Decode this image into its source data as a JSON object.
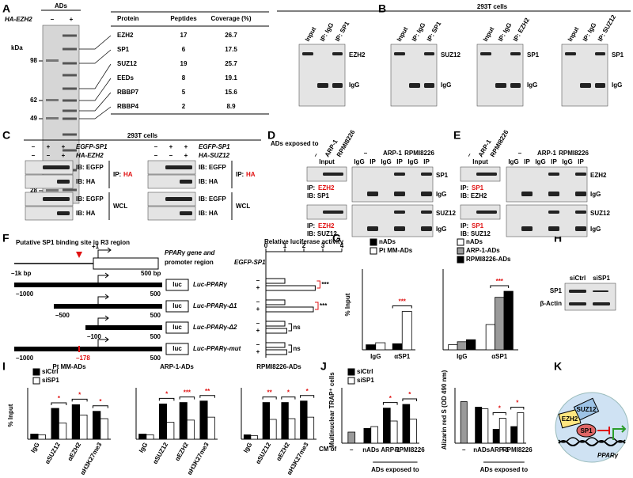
{
  "panel_labels": [
    "A",
    "B",
    "C",
    "D",
    "E",
    "F",
    "G",
    "H",
    "I",
    "J",
    "K"
  ],
  "a": {
    "header": "ADs",
    "construct": "HA-EZH2",
    "lanes": [
      "–",
      "+"
    ],
    "kda_label": "kDa",
    "markers": [
      98,
      62,
      49,
      28
    ],
    "table": {
      "columns": [
        "Protein",
        "Peptides",
        "Coverage (%)"
      ],
      "rows": [
        [
          "EZH2",
          17,
          26.7
        ],
        [
          "SP1",
          6,
          17.5
        ],
        [
          "SUZ12",
          19,
          25.7
        ],
        [
          "EEDs",
          8,
          19.1
        ],
        [
          "RBBP7",
          5,
          15.6
        ],
        [
          "RBBP4",
          2,
          8.9
        ]
      ]
    }
  },
  "b": {
    "title": "293T cells",
    "blots": [
      {
        "lanes": [
          "Input",
          "IP: IgG",
          "IP: SP1"
        ],
        "bands": [
          "EZH2",
          "IgG"
        ]
      },
      {
        "lanes": [
          "Input",
          "IP: IgG",
          "IP: SP1"
        ],
        "bands": [
          "SUZ12",
          "IgG"
        ]
      },
      {
        "lanes": [
          "Input",
          "IP: IgG",
          "IP: EZH2"
        ],
        "bands": [
          "SP1",
          "IgG"
        ]
      },
      {
        "lanes": [
          "Input",
          "IP: IgG",
          "IP: SUZ12"
        ],
        "bands": [
          "SP1",
          "IgG"
        ]
      }
    ]
  },
  "c": {
    "title": "293T cells",
    "ip": "IP:",
    "ip_target": "HA",
    "wcl": "WCL",
    "blots": [
      {
        "signs": [
          [
            "–",
            "+",
            "+"
          ],
          [
            "–",
            "–",
            "+"
          ]
        ],
        "constructs": [
          "EGFP-SP1",
          "HA-EZH2"
        ],
        "ib": [
          "IB: EGFP",
          "IB: HA",
          "IB: EGFP",
          "IB: HA"
        ]
      },
      {
        "signs": [
          [
            "–",
            "+",
            "+"
          ],
          [
            "–",
            "–",
            "+"
          ]
        ],
        "constructs": [
          "EGFP-SP1",
          "HA-SUZ12"
        ],
        "ib": [
          "IB: EGFP",
          "IB: HA",
          "IB: EGFP",
          "IB: HA"
        ]
      }
    ]
  },
  "d": {
    "exposed": "ADs exposed to",
    "groups": [
      "–",
      "ARP-1",
      "RPMI8226"
    ],
    "input": "Input",
    "lanes": [
      "IgG",
      "IP",
      "IgG",
      "IP",
      "IgG",
      "IP"
    ],
    "ip": "IP:",
    "ip_target": "EZH2",
    "ib": [
      "IB: SP1",
      "IB: SUZ12"
    ],
    "bands": [
      "SP1",
      "IgG",
      "SUZ12",
      "IgG"
    ]
  },
  "e": {
    "groups": [
      "–",
      "ARP-1",
      "RPMI8226"
    ],
    "input": "Input",
    "lanes": [
      "IgG",
      "IP",
      "IgG",
      "IP",
      "IgG",
      "IP"
    ],
    "ip": "IP:",
    "ip_target": "SP1",
    "ib": [
      "IB: EZH2",
      "IB: SUZ12"
    ],
    "bands": [
      "EZH2",
      "IgG",
      "SUZ12",
      "IgG"
    ]
  },
  "f": {
    "title": "Putative SP1 binding site in R3 region",
    "tss": "+1",
    "gene_label": [
      "PPARγ gene and",
      "promoter region"
    ],
    "start": "–1k bp",
    "end": "500 bp",
    "luc": "luc",
    "constructs": [
      {
        "name": "Luc-PPARγ",
        "from": "–1000",
        "to": "500"
      },
      {
        "name": "Luc-PPARγ-Δ1",
        "from": "–500",
        "to": "500"
      },
      {
        "name": "Luc-PPARγ-Δ2",
        "from": "–100",
        "to": "500"
      },
      {
        "name": "Luc-PPARγ-mut",
        "from": "–1000",
        "to": "500",
        "mutation": "–178"
      }
    ],
    "chart_data": {
      "type": "bar",
      "title": "Relative luciferase activity",
      "legend_title": "EGFP-SP1",
      "series": [
        {
          "name": "–",
          "color": "#ffffff",
          "label_color": "#000000",
          "values": [
            1.0,
            1.0,
            1.0,
            1.0
          ]
        },
        {
          "name": "+",
          "color": "#ffffff",
          "label_color": "#e01010",
          "values": [
            2.6,
            2.5,
            1.1,
            1.1
          ]
        }
      ],
      "xlim": [
        0,
        4
      ],
      "xticks": [
        0,
        1,
        2,
        3,
        4
      ],
      "significance": [
        "***",
        "***",
        "ns",
        "ns"
      ],
      "significance_color": [
        "#e01010",
        "#e01010",
        "#000000",
        "#000000"
      ]
    }
  },
  "g": {
    "ylabel": "% Input",
    "charts": [
      {
        "type": "bar",
        "categories": [
          "IgG",
          "αSP1"
        ],
        "series": [
          {
            "name": "nADs",
            "color": "#000000",
            "values": [
              0.5,
              0.6
            ]
          },
          {
            "name": "Pt MM-ADs",
            "color": "#ffffff",
            "values": [
              0.7,
              3.8
            ]
          }
        ],
        "ylim": [
          0,
          8
        ],
        "significance": [
          null,
          "***"
        ]
      },
      {
        "type": "bar",
        "categories": [
          "IgG",
          "αSP1"
        ],
        "series": [
          {
            "name": "nADs",
            "color": "#ffffff",
            "values": [
              0.5,
              2.5
            ]
          },
          {
            "name": "ARP-1-ADs",
            "color": "#9a9a9a",
            "values": [
              0.8,
              5.2
            ]
          },
          {
            "name": "RPMI8226-ADs",
            "color": "#000000",
            "values": [
              1.0,
              5.8
            ]
          }
        ],
        "ylim": [
          0,
          8
        ],
        "significance": [
          null,
          "***"
        ]
      }
    ]
  },
  "h": {
    "lanes": [
      "siCtrl",
      "siSP1"
    ],
    "bands": [
      "SP1",
      "β-Actin"
    ]
  },
  "i": {
    "ylabel": "% Input",
    "legend": [
      {
        "name": "siCtrl",
        "color": "#000000"
      },
      {
        "name": "siSP1",
        "color": "#ffffff"
      }
    ],
    "categories": [
      "IgG",
      "αSUZ12",
      "αEZH2",
      "αH3K27me3"
    ],
    "charts": [
      {
        "type": "bar",
        "title": "Pt MM-ADs",
        "ylim": [
          0,
          7
        ],
        "values": [
          [
            0.7,
            4.2,
            4.7,
            3.8
          ],
          [
            0.6,
            2.2,
            3.3,
            2.8
          ]
        ],
        "significance": [
          null,
          "*",
          "*",
          "*"
        ]
      },
      {
        "type": "bar",
        "title": "ARP-1-ADs",
        "ylim": [
          0,
          7
        ],
        "values": [
          [
            0.7,
            4.8,
            5.0,
            5.2
          ],
          [
            0.6,
            2.3,
            2.6,
            3.0
          ]
        ],
        "significance": [
          null,
          "*",
          "***",
          "**"
        ]
      },
      {
        "type": "bar",
        "title": "RPMI8226-ADs",
        "ylim": [
          0,
          7
        ],
        "values": [
          [
            0.6,
            5.0,
            5.0,
            5.2
          ],
          [
            0.5,
            2.7,
            2.8,
            3.0
          ]
        ],
        "significance": [
          null,
          "**",
          "*",
          "*"
        ]
      }
    ]
  },
  "j": {
    "legend": [
      {
        "name": "siCtrl",
        "color": "#000000"
      },
      {
        "name": "siSP1",
        "color": "#ffffff"
      }
    ],
    "control_color": "#9a9a9a",
    "categories": [
      "–",
      "nADs",
      "ARP-1",
      "RPMI8226"
    ],
    "cm_of": "CM of",
    "group": "ADs exposed to",
    "charts": [
      {
        "type": "bar",
        "ylabel": "Multinuclear TRAP⁺ cells",
        "ylim": [
          0,
          30
        ],
        "values": [
          [
            6,
            8,
            19,
            21
          ],
          [
            null,
            9,
            12,
            13
          ]
        ],
        "significance": [
          null,
          null,
          "*",
          "*"
        ]
      },
      {
        "type": "bar",
        "ylabel": "Alizarin red S (OD 490 nm)",
        "ylim": [
          0,
          1
        ],
        "values": [
          [
            0.75,
            0.65,
            0.25,
            0.3
          ],
          [
            null,
            0.62,
            0.45,
            0.55
          ]
        ],
        "significance": [
          null,
          null,
          "*",
          "*"
        ]
      }
    ]
  },
  "k": {
    "labels": [
      "EZH2",
      "SUZ12",
      "SP1",
      "PPARγ"
    ]
  }
}
